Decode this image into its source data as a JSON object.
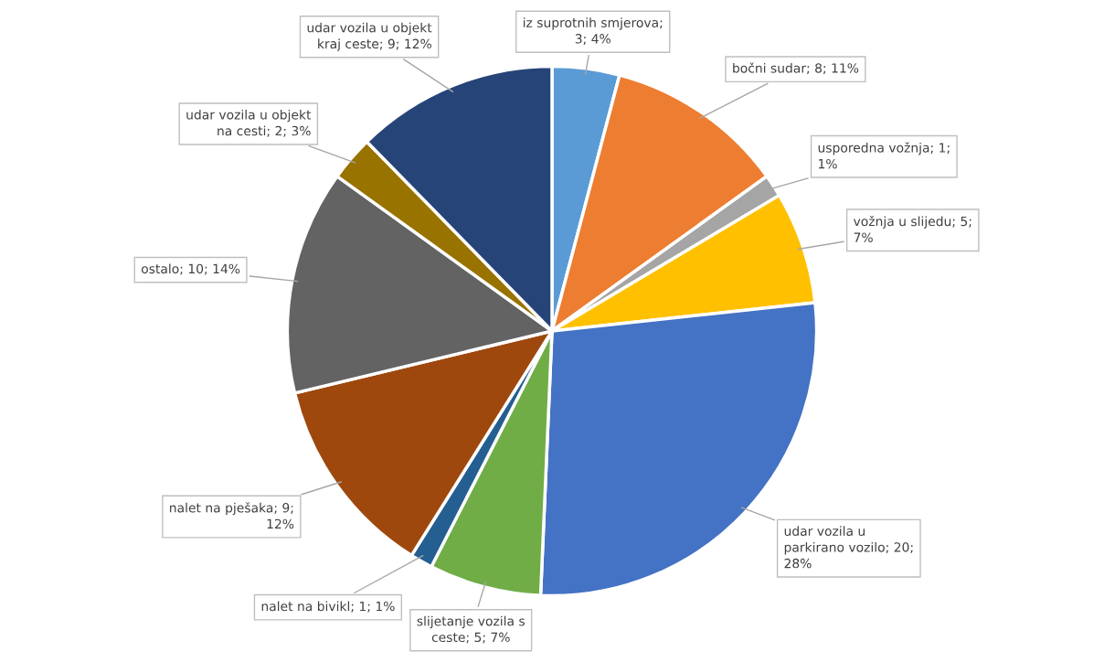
{
  "chart_data": {
    "type": "pie",
    "categories": [
      "iz suprotnih smjerova; 3; 4%",
      "bočni sudar; 8; 11%",
      "usporedna vožnja; 1; 1%",
      "vožnja u slijedu; 5; 7%",
      "udar vozila u parkirano vozilo; 20; 28%",
      "slijetanje vozila s ceste; 5; 7%",
      "nalet na bivikl; 1; 1%",
      "nalet na pješaka; 9; 12%",
      "ostalo; 10; 14%",
      "udar vozila u objekt na cesti; 2; 3%",
      "udar vozila u objekt kraj ceste; 9; 12%"
    ],
    "values": [
      3,
      8,
      1,
      5,
      20,
      5,
      1,
      9,
      10,
      2,
      9
    ],
    "colors": [
      "#5b9bd5",
      "#ed7d31",
      "#a5a5a5",
      "#ffc000",
      "#4472c4",
      "#70ad47",
      "#255e91",
      "#9e480e",
      "#636363",
      "#997300",
      "#264478"
    ]
  }
}
